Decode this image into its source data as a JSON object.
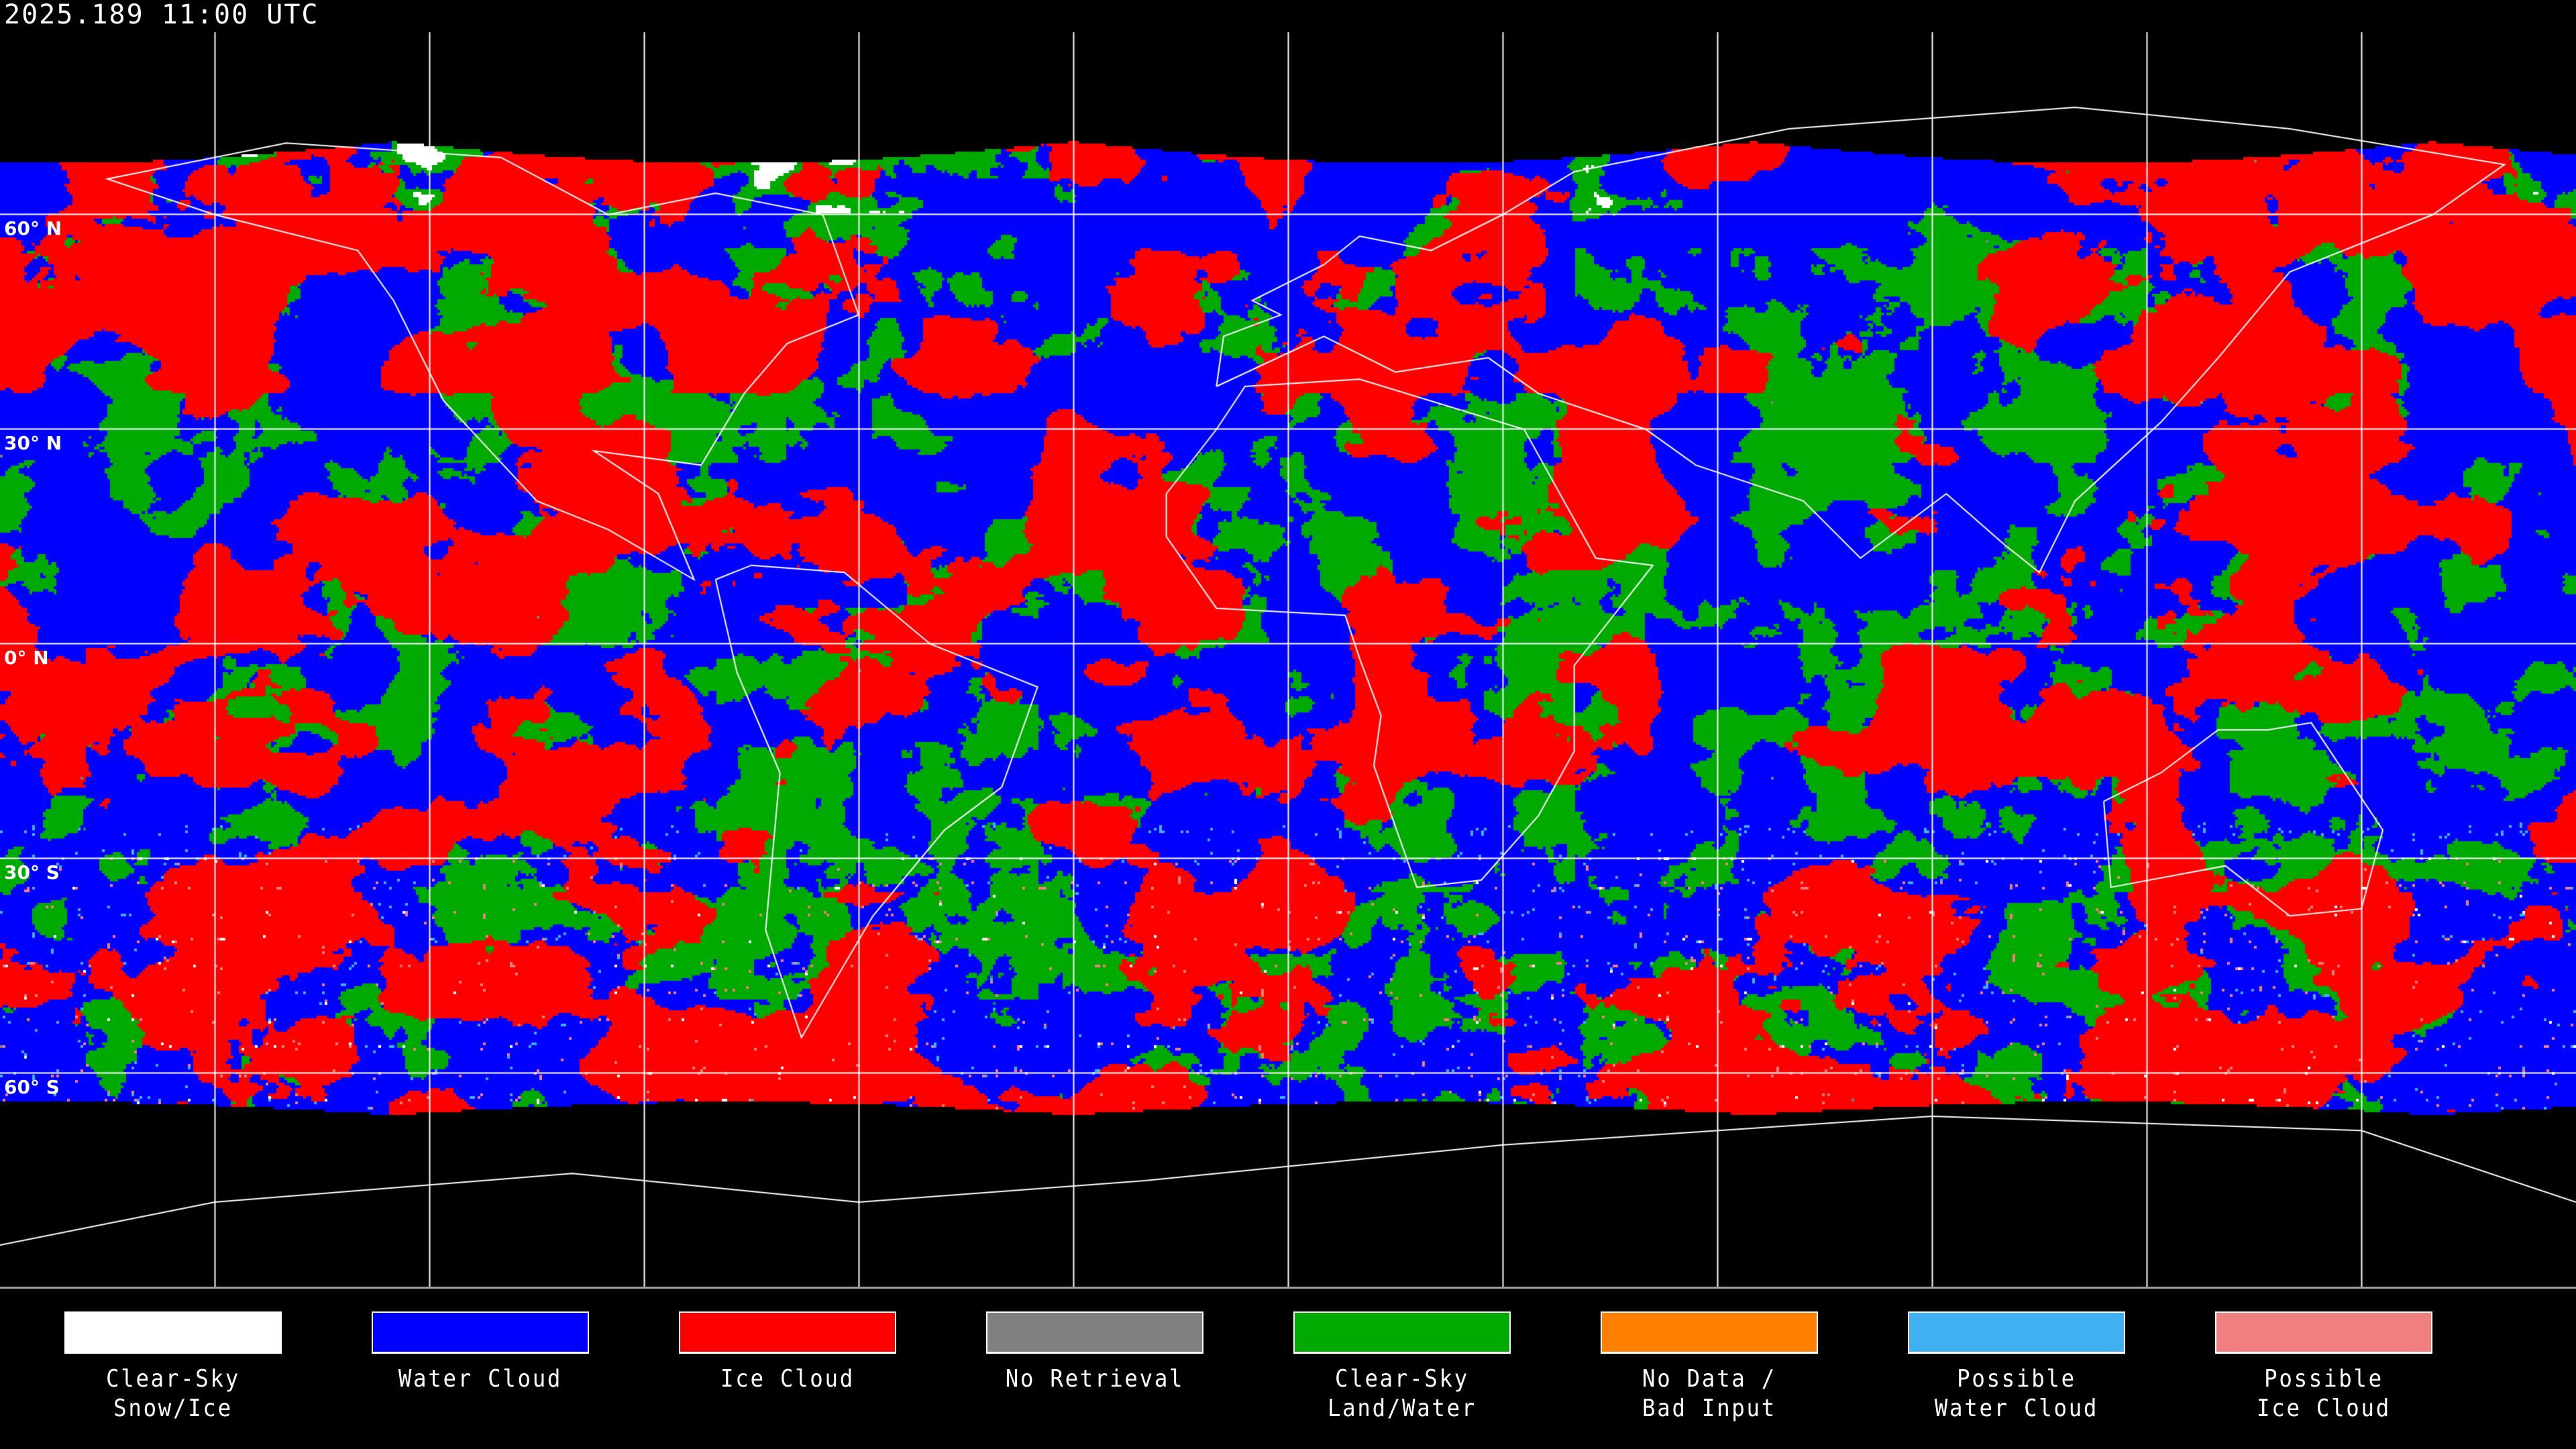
{
  "title": "2025.189 11:00 UTC",
  "lat_labels": [
    "60° N",
    "30° N",
    "0° N",
    "30° S",
    "60° S"
  ],
  "map": {
    "projection": "equirectangular",
    "gridline_spacing_deg": 30,
    "gridline_color": "#ffffff",
    "coastline_color": "#ffffff",
    "background_color": "#000000"
  },
  "legend": [
    {
      "label": "Clear-Sky\nSnow/Ice",
      "color": "#ffffff"
    },
    {
      "label": "Water Cloud",
      "color": "#0000ff"
    },
    {
      "label": "Ice Cloud",
      "color": "#ff0000"
    },
    {
      "label": "No Retrieval",
      "color": "#808080"
    },
    {
      "label": "Clear-Sky\nLand/Water",
      "color": "#00aa00"
    },
    {
      "label": "No Data /\nBad Input",
      "color": "#ff8000"
    },
    {
      "label": "Possible\nWater Cloud",
      "color": "#40b0f0"
    },
    {
      "label": "Possible\nIce Cloud",
      "color": "#f08080"
    }
  ]
}
